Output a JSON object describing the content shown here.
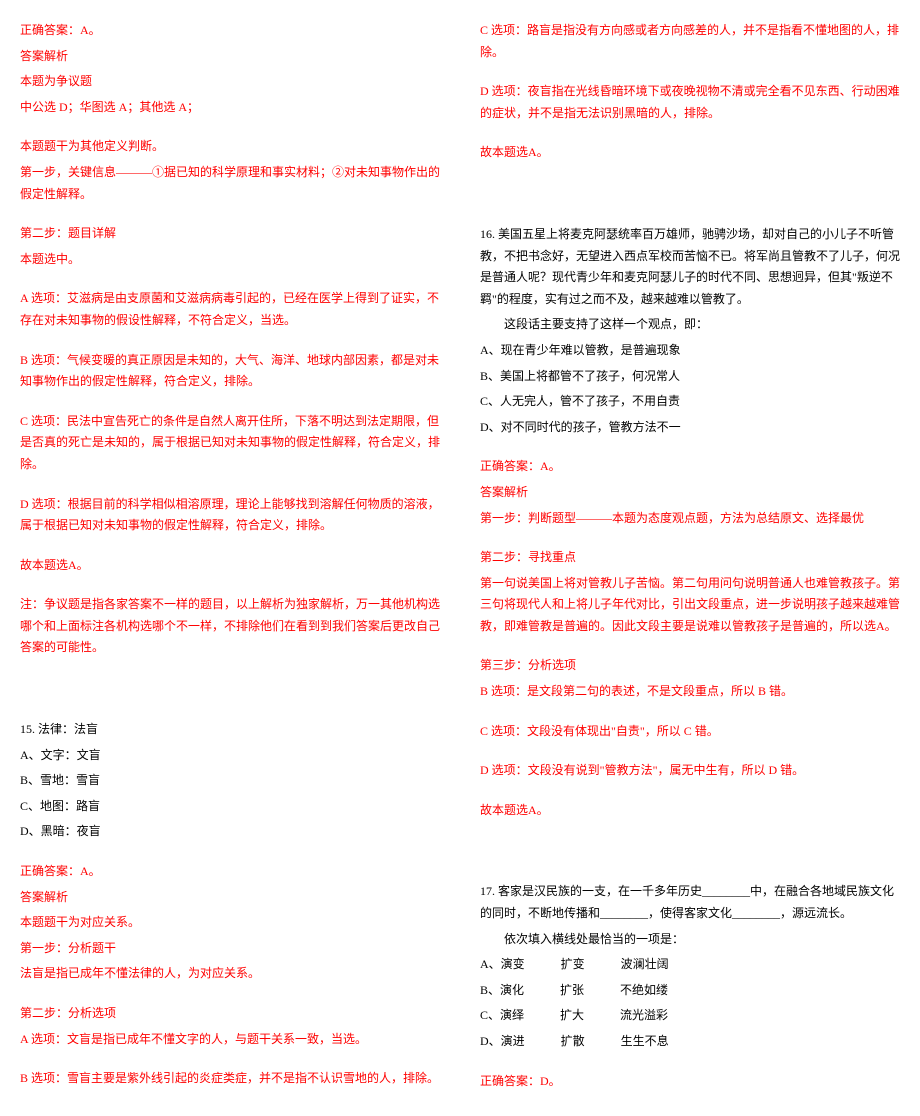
{
  "left": {
    "l1": "正确答案：A。",
    "l2": "答案解析",
    "l3": "本题为争议题",
    "l4": "中公选 D；华图选 A；其他选 A；",
    "l5": "本题题干为其他定义判断。",
    "l6": "第一步，关键信息———①据已知的科学原理和事实材料；②对未知事物作出的假定性解释。",
    "l7": "第二步：题目详解",
    "l8": "本题选中。",
    "l9": "A 选项：艾滋病是由支原菌和艾滋病病毒引起的，已经在医学上得到了证实，不存在对未知事物的假设性解释，不符合定义，当选。",
    "l10": "B 选项：气候变暖的真正原因是未知的，大气、海洋、地球内部因素，都是对未知事物作出的假定性解释，符合定义，排除。",
    "l11": "C 选项：民法中宣告死亡的条件是自然人离开住所，下落不明达到法定期限，但是否真的死亡是未知的，属于根据已知对未知事物的假定性解释，符合定义，排除。",
    "l12": "D 选项：根据目前的科学相似相溶原理，理论上能够找到溶解任何物质的溶液，属于根据已知对未知事物的假定性解释，符合定义，排除。",
    "l13": "故本题选A。",
    "l14": "注：争议题是指各家答案不一样的题目，以上解析为独家解析，万一其他机构选哪个和上面标注各机构选哪个不一样，不排除他们在看到到我们答案后更改自己答案的可能性。",
    "q15_title": "15. 法律：法盲",
    "q15_a": "A、文字：文盲",
    "q15_b": "B、雪地：雪盲",
    "q15_c": "C、地图：路盲",
    "q15_d": "D、黑暗：夜盲",
    "l15": "正确答案：A。",
    "l16": "答案解析",
    "l17": "本题题干为对应关系。",
    "l18": "第一步：分析题干",
    "l19": "法盲是指已成年不懂法律的人，为对应关系。",
    "l20": "第二步：分析选项",
    "l21": "A 选项：文盲是指已成年不懂文字的人，与题干关系一致，当选。",
    "l22": "B 选项：雪盲主要是紫外线引起的炎症类症，并不是指不认识雪地的人，排除。"
  },
  "right": {
    "r1": "C 选项：路盲是指没有方向感或者方向感差的人，并不是指看不懂地图的人，排除。",
    "r2": "D 选项：夜盲指在光线昏暗环境下或夜晚视物不清或完全看不见东西、行动困难的症状，并不是指无法识别黑暗的人，排除。",
    "r3": "故本题选A。",
    "q16_title": "16. 美国五星上将麦克阿瑟统率百万雄师，驰骋沙场，却对自己的小儿子不听管教，不把书念好，无望进入西点军校而苦恼不已。将军尚且管教不了儿子，何况是普通人呢？现代青少年和麦克阿瑟儿子的时代不同、思想迥异，但其\"叛逆不羁\"的程度，实有过之而不及，越来越难以管教了。",
    "q16_q": "　　这段话主要支持了这样一个观点，即：",
    "q16_a": "A、现在青少年难以管教，是普遍现象",
    "q16_b": "B、美国上将都管不了孩子，何况常人",
    "q16_c": "C、人无完人，管不了孩子，不用自责",
    "q16_d": "D、对不同时代的孩子，管教方法不一",
    "r4": "正确答案：A。",
    "r5": "答案解析",
    "r6": "第一步：判断题型———本题为态度观点题，方法为总结原文、选择最优",
    "r7": "第二步：寻找重点",
    "r8": "第一句说美国上将对管教儿子苦恼。第二句用问句说明普通人也难管教孩子。第三句将现代人和上将儿子年代对比，引出文段重点，进一步说明孩子越来越难管教，即难管教是普遍的。因此文段主要是说难以管教孩子是普遍的，所以选A。",
    "r9": "第三步：分析选项",
    "r10": "B 选项：是文段第二句的表述，不是文段重点，所以 B 错。",
    "r11": "C 选项：文段没有体现出\"自责\"，所以 C 错。",
    "r12": "D 选项：文段没有说到\"管教方法\"，属无中生有，所以 D 错。",
    "r13": "故本题选A。",
    "q17_title": "17. 客家是汉民族的一支，在一千多年历史________中，在融合各地域民族文化的同时，不断地传播和________，使得客家文化________，源远流长。",
    "q17_q": "　　依次填入横线处最恰当的一项是：",
    "q17_a": "A、演变　　　扩变　　　波澜壮阔",
    "q17_b": "B、演化　　　扩张　　　不绝如缕",
    "q17_c": "C、演绎　　　扩大　　　流光溢彩",
    "q17_d": "D、演进　　　扩散　　　生生不息",
    "r14": "正确答案：D。"
  }
}
